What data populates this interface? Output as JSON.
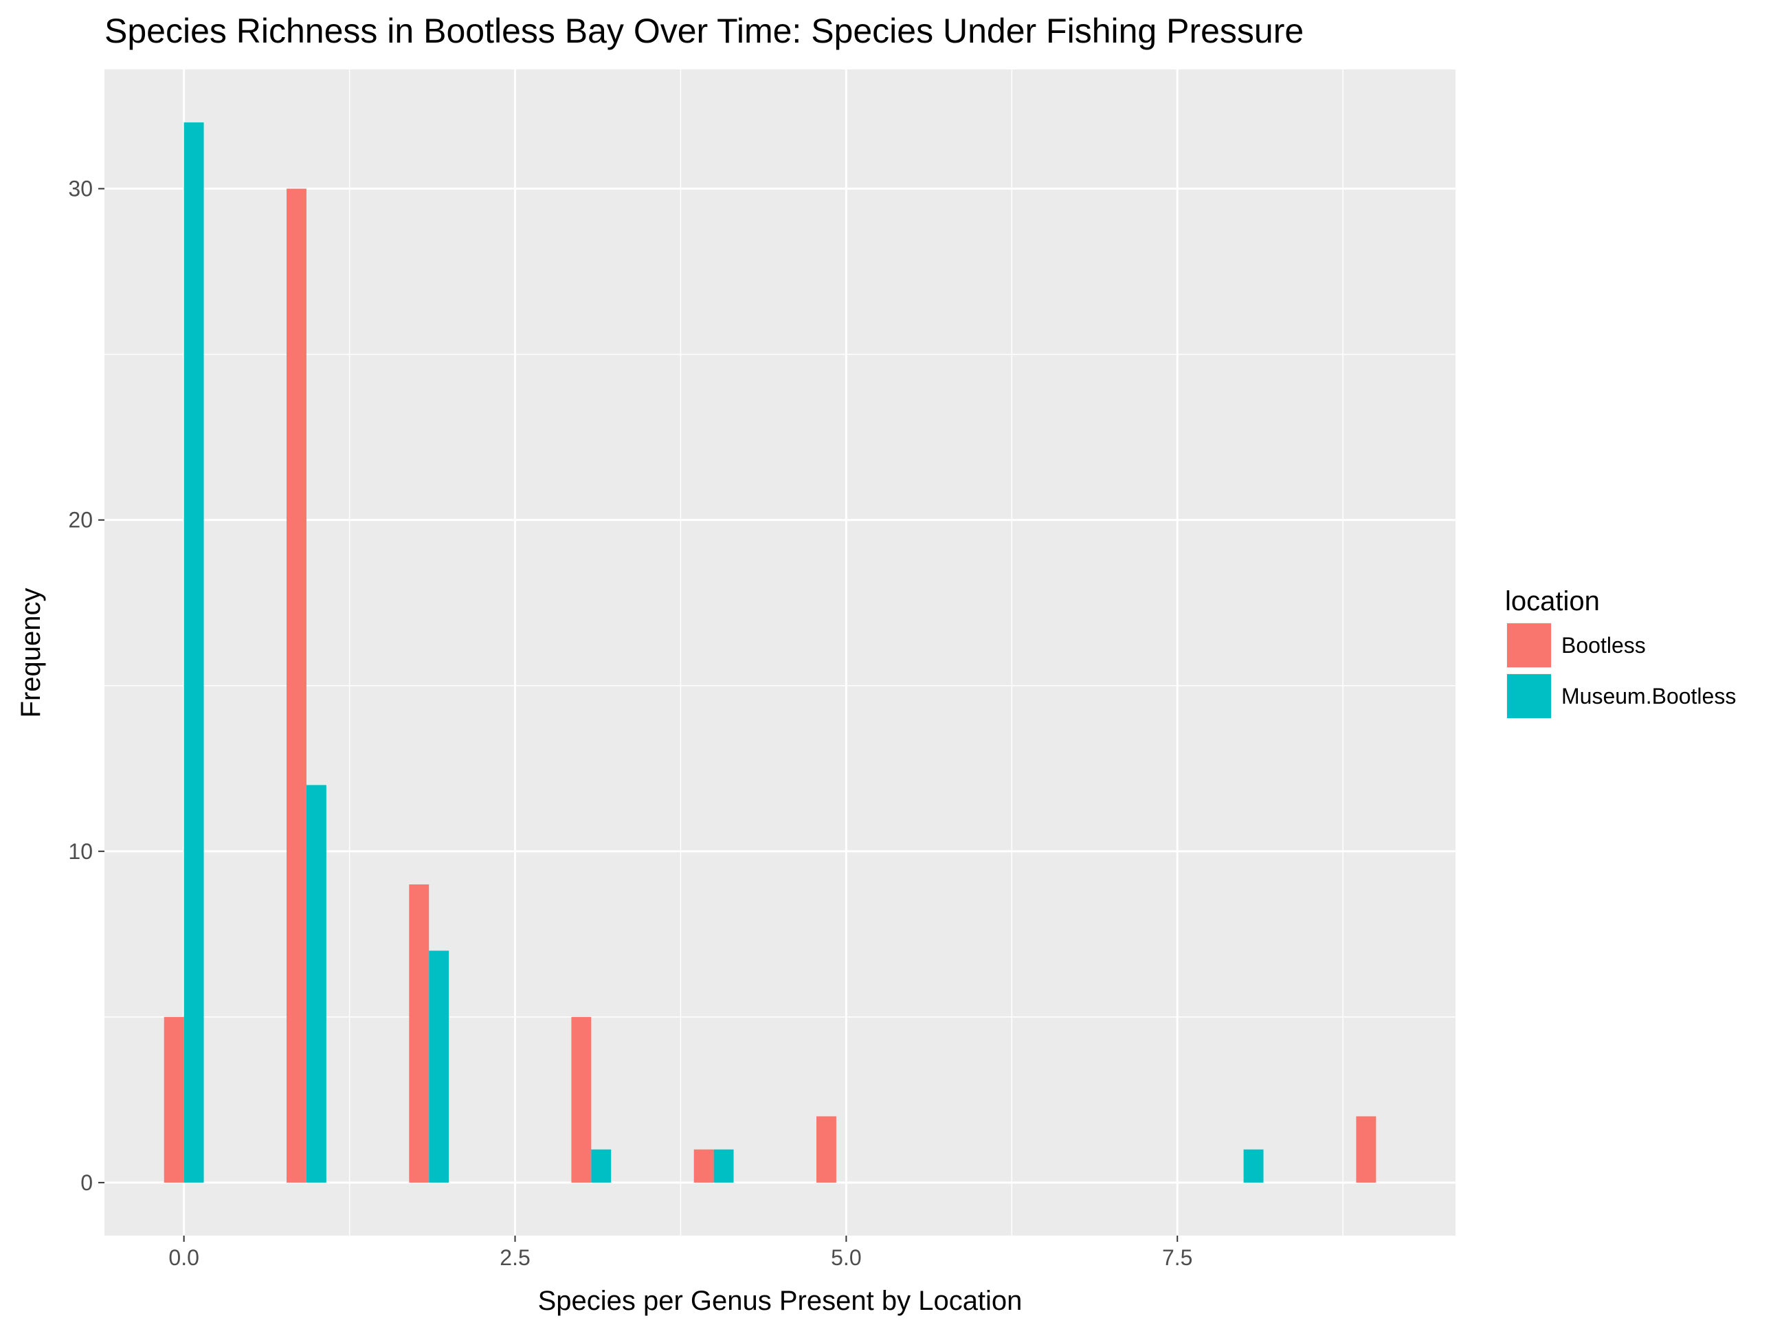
{
  "chart_data": {
    "type": "bar",
    "title": "Species Richness in Bootless Bay Over Time: Species Under Fishing Pressure",
    "xlabel": "Species per Genus Present by Location",
    "ylabel": "Frequency",
    "xlim": [
      -0.6,
      9.6
    ],
    "ylim": [
      -1.6,
      33.6
    ],
    "x_ticks": [
      0.0,
      2.5,
      5.0,
      7.5
    ],
    "x_tick_labels": [
      "0.0",
      "2.5",
      "5.0",
      "7.5"
    ],
    "y_ticks": [
      0,
      10,
      20,
      30
    ],
    "y_tick_labels": [
      "0",
      "10",
      "20",
      "30"
    ],
    "grid": true,
    "legend": {
      "title": "location",
      "position": "right"
    },
    "bar_width": 0.3,
    "series": [
      {
        "name": "Bootless",
        "color": "#F8766D",
        "points": [
          {
            "x": 0.0,
            "y": 5
          },
          {
            "x": 0.925,
            "y": 30
          },
          {
            "x": 1.85,
            "y": 9
          },
          {
            "x": 3.075,
            "y": 5
          },
          {
            "x": 4.0,
            "y": 1
          },
          {
            "x": 4.925,
            "y": 2
          },
          {
            "x": 9.0,
            "y": 2
          }
        ]
      },
      {
        "name": "Museum.Bootless",
        "color": "#00BFC4",
        "points": [
          {
            "x": 0.0,
            "y": 32
          },
          {
            "x": 0.925,
            "y": 12
          },
          {
            "x": 1.85,
            "y": 7
          },
          {
            "x": 3.075,
            "y": 1
          },
          {
            "x": 4.0,
            "y": 1
          },
          {
            "x": 8.0,
            "y": 1
          }
        ]
      }
    ],
    "panel_background": "#EBEBEB",
    "grid_color": "#FFFFFF"
  }
}
